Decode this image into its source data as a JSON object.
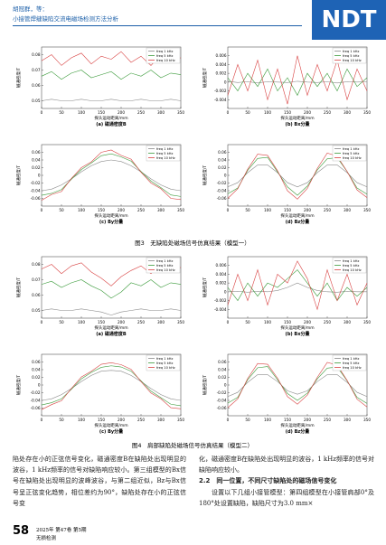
{
  "header": {
    "authors": "胡冠群，等：",
    "title": "小接管焊缝缺陷交流电磁场检测方法分析"
  },
  "logo": "NDT",
  "chart_data": [
    {
      "type": "line",
      "title": "(a) 磁通密度B",
      "x_label": "探头运动距离/mm",
      "y_label": "磁通密度/T",
      "legend": "upper right",
      "xlim": [
        0,
        350
      ],
      "xticks": [
        0,
        50,
        100,
        150,
        200,
        250,
        300,
        350
      ],
      "ylim": [
        0.045,
        0.085
      ],
      "yticks": [
        0.05,
        0.06,
        0.07,
        0.08
      ],
      "x": [
        0,
        25,
        50,
        75,
        100,
        125,
        150,
        175,
        200,
        225,
        250,
        275,
        300,
        325,
        350
      ],
      "series": [
        {
          "name": "freq 1 kHz",
          "color": "#8a8a8a",
          "values": [
            0.05,
            0.051,
            0.05,
            0.05,
            0.051,
            0.05,
            0.05,
            0.051,
            0.05,
            0.05,
            0.051,
            0.05,
            0.05,
            0.051,
            0.05
          ]
        },
        {
          "name": "freq 5 kHz",
          "color": "#3a9a3a",
          "values": [
            0.066,
            0.069,
            0.064,
            0.068,
            0.07,
            0.065,
            0.067,
            0.069,
            0.064,
            0.068,
            0.066,
            0.07,
            0.065,
            0.068,
            0.067
          ]
        },
        {
          "name": "freq 10 kHz",
          "color": "#d84040",
          "values": [
            0.076,
            0.08,
            0.073,
            0.078,
            0.081,
            0.074,
            0.079,
            0.077,
            0.082,
            0.075,
            0.079,
            0.073,
            0.08,
            0.076,
            0.078
          ]
        }
      ]
    },
    {
      "type": "line",
      "title": "(b) Bx分量",
      "x_label": "探头运动距离/mm",
      "y_label": "磁通密度/T",
      "legend": "upper right",
      "xlim": [
        0,
        350
      ],
      "xticks": [
        0,
        50,
        100,
        150,
        200,
        250,
        300,
        350
      ],
      "ylim": [
        -0.006,
        0.008
      ],
      "yticks": [
        -0.004,
        -0.002,
        0,
        0.002,
        0.004,
        0.006
      ],
      "x": [
        0,
        25,
        50,
        75,
        100,
        125,
        150,
        175,
        200,
        225,
        250,
        275,
        300,
        325,
        350
      ],
      "series": [
        {
          "name": "freq 1 kHz",
          "color": "#8a8a8a",
          "values": [
            0.0002,
            -0.0001,
            0.0001,
            -0.0002,
            0.0001,
            0,
            -0.0001,
            0.0002,
            0,
            -0.0001,
            0.0001,
            -0.0002,
            0.0001,
            0,
            0.0001
          ]
        },
        {
          "name": "freq 5 kHz",
          "color": "#3a9a3a",
          "values": [
            0.001,
            -0.002,
            0.002,
            -0.001,
            0.003,
            -0.002,
            0.001,
            -0.003,
            0.002,
            -0.001,
            0.002,
            -0.002,
            0.003,
            -0.001,
            0.001
          ]
        },
        {
          "name": "freq 10 kHz",
          "color": "#d84040",
          "values": [
            -0.003,
            0.004,
            -0.002,
            0.005,
            -0.004,
            0.003,
            -0.005,
            0.006,
            -0.003,
            0.004,
            -0.002,
            0.005,
            -0.004,
            0.003,
            -0.002
          ]
        }
      ]
    },
    {
      "type": "line",
      "title": "(c) By分量",
      "x_label": "探头运动距离/mm",
      "y_label": "磁通密度/T",
      "legend": "upper right",
      "xlim": [
        0,
        350
      ],
      "xticks": [
        0,
        50,
        100,
        150,
        200,
        250,
        300,
        350
      ],
      "ylim": [
        -0.08,
        0.08
      ],
      "yticks": [
        -0.06,
        -0.04,
        -0.02,
        0,
        0.02,
        0.04,
        0.06
      ],
      "x": [
        0,
        25,
        50,
        75,
        100,
        125,
        150,
        175,
        200,
        225,
        250,
        275,
        300,
        325,
        350
      ],
      "series": [
        {
          "name": "freq 1 kHz",
          "color": "#8a8a8a",
          "values": [
            -0.04,
            -0.036,
            -0.025,
            -0.009,
            0.009,
            0.025,
            0.036,
            0.04,
            0.036,
            0.025,
            0.009,
            -0.009,
            -0.025,
            -0.036,
            -0.04
          ]
        },
        {
          "name": "freq 5 kHz",
          "color": "#3a9a3a",
          "values": [
            -0.052,
            -0.047,
            -0.037,
            -0.01,
            0.015,
            0.032,
            0.051,
            0.056,
            0.048,
            0.037,
            0.01,
            -0.015,
            -0.032,
            -0.051,
            -0.055
          ]
        },
        {
          "name": "freq 10 kHz",
          "color": "#d84040",
          "values": [
            -0.065,
            -0.05,
            -0.042,
            -0.008,
            0.02,
            0.035,
            0.06,
            0.066,
            0.052,
            0.042,
            0.008,
            -0.02,
            -0.035,
            -0.06,
            -0.063
          ]
        }
      ]
    },
    {
      "type": "line",
      "title": "(d) Bz分量",
      "x_label": "探头运动距离/mm",
      "y_label": "磁通密度/T",
      "legend": "upper right",
      "xlim": [
        0,
        350
      ],
      "xticks": [
        0,
        50,
        100,
        150,
        200,
        250,
        300,
        350
      ],
      "ylim": [
        -0.08,
        0.08
      ],
      "yticks": [
        -0.06,
        -0.04,
        -0.02,
        0,
        0.02,
        0.04,
        0.06
      ],
      "x": [
        0,
        25,
        50,
        75,
        100,
        125,
        150,
        175,
        200,
        225,
        250,
        275,
        300,
        325,
        350
      ],
      "series": [
        {
          "name": "freq 1 kHz",
          "color": "#8a8a8a",
          "values": [
            -0.03,
            -0.019,
            0.007,
            0.027,
            0.027,
            0.007,
            -0.019,
            -0.03,
            -0.019,
            0.007,
            0.027,
            0.027,
            0.007,
            -0.019,
            -0.03
          ]
        },
        {
          "name": "freq 5 kHz",
          "color": "#3a9a3a",
          "values": [
            -0.048,
            -0.033,
            0.013,
            0.044,
            0.047,
            0.009,
            -0.03,
            -0.052,
            -0.028,
            0.014,
            0.043,
            0.046,
            0.01,
            -0.033,
            -0.049
          ]
        },
        {
          "name": "freq 10 kHz",
          "color": "#d84040",
          "values": [
            -0.06,
            -0.035,
            0.016,
            0.055,
            0.052,
            0.012,
            -0.04,
            -0.062,
            -0.034,
            0.018,
            0.058,
            0.05,
            0.01,
            -0.038,
            -0.058
          ]
        }
      ]
    },
    {
      "type": "line",
      "title": "(a) 磁通密度B",
      "x_label": "探头运动距离/mm",
      "y_label": "磁通密度/T",
      "legend": "upper right",
      "xlim": [
        0,
        350
      ],
      "xticks": [
        0,
        50,
        100,
        150,
        200,
        250,
        300,
        350
      ],
      "ylim": [
        0.045,
        0.085
      ],
      "yticks": [
        0.05,
        0.06,
        0.07,
        0.08
      ],
      "x": [
        0,
        25,
        50,
        75,
        100,
        125,
        150,
        175,
        200,
        225,
        250,
        275,
        300,
        325,
        350
      ],
      "series": [
        {
          "name": "freq 1 kHz",
          "color": "#8a8a8a",
          "values": [
            0.05,
            0.051,
            0.05,
            0.05,
            0.051,
            0.05,
            0.049,
            0.047,
            0.049,
            0.05,
            0.051,
            0.05,
            0.05,
            0.051,
            0.05
          ]
        },
        {
          "name": "freq 5 kHz",
          "color": "#3a9a3a",
          "values": [
            0.067,
            0.069,
            0.065,
            0.068,
            0.07,
            0.066,
            0.063,
            0.058,
            0.062,
            0.068,
            0.066,
            0.07,
            0.065,
            0.068,
            0.067
          ]
        },
        {
          "name": "freq 10 kHz",
          "color": "#d84040",
          "values": [
            0.077,
            0.08,
            0.074,
            0.079,
            0.081,
            0.075,
            0.071,
            0.066,
            0.072,
            0.076,
            0.079,
            0.074,
            0.08,
            0.076,
            0.078
          ]
        }
      ]
    },
    {
      "type": "line",
      "title": "(b) Bx分量",
      "x_label": "探头运动距离/mm",
      "y_label": "磁通密度/T",
      "legend": "upper right",
      "xlim": [
        0,
        350
      ],
      "xticks": [
        0,
        50,
        100,
        150,
        200,
        250,
        300,
        350
      ],
      "ylim": [
        -0.006,
        0.008
      ],
      "yticks": [
        -0.004,
        -0.002,
        0,
        0.002,
        0.004,
        0.006
      ],
      "x": [
        0,
        25,
        50,
        75,
        100,
        125,
        150,
        175,
        200,
        225,
        250,
        275,
        300,
        325,
        350
      ],
      "series": [
        {
          "name": "freq 1 kHz",
          "color": "#8a8a8a",
          "values": [
            0,
            0.0001,
            -0.0001,
            0.0001,
            0,
            0.0003,
            0.001,
            0.002,
            0.001,
            0.0003,
            0,
            -0.0001,
            0.0001,
            0,
            0
          ]
        },
        {
          "name": "freq 5 kHz",
          "color": "#3a9a3a",
          "values": [
            0.001,
            -0.002,
            0.002,
            -0.001,
            0.002,
            0.001,
            0.003,
            0.005,
            0.002,
            -0.001,
            0.002,
            -0.002,
            0.001,
            -0.001,
            0.001
          ]
        },
        {
          "name": "freq 10 kHz",
          "color": "#d84040",
          "values": [
            -0.003,
            0.004,
            -0.002,
            0.005,
            -0.003,
            0.004,
            0.002,
            0.007,
            0.003,
            -0.004,
            0.005,
            -0.002,
            0.004,
            -0.003,
            0.002
          ]
        }
      ]
    },
    {
      "type": "line",
      "title": "(c) By分量",
      "x_label": "探头运动距离/mm",
      "y_label": "磁通密度/T",
      "legend": "upper right",
      "xlim": [
        0,
        350
      ],
      "xticks": [
        0,
        50,
        100,
        150,
        200,
        250,
        300,
        350
      ],
      "ylim": [
        -0.08,
        0.08
      ],
      "yticks": [
        -0.06,
        -0.04,
        -0.02,
        0,
        0.02,
        0.04,
        0.06
      ],
      "x": [
        0,
        25,
        50,
        75,
        100,
        125,
        150,
        175,
        200,
        225,
        250,
        275,
        300,
        325,
        350
      ],
      "series": [
        {
          "name": "freq 1 kHz",
          "color": "#8a8a8a",
          "values": [
            -0.04,
            -0.036,
            -0.025,
            -0.009,
            0.009,
            0.025,
            0.036,
            0.038,
            0.036,
            0.025,
            0.009,
            -0.009,
            -0.025,
            -0.036,
            -0.04
          ]
        },
        {
          "name": "freq 5 kHz",
          "color": "#3a9a3a",
          "values": [
            -0.052,
            -0.046,
            -0.036,
            -0.011,
            0.016,
            0.033,
            0.046,
            0.05,
            0.047,
            0.036,
            0.011,
            -0.016,
            -0.033,
            -0.05,
            -0.054
          ]
        },
        {
          "name": "freq 10 kHz",
          "color": "#d84040",
          "values": [
            -0.064,
            -0.051,
            -0.041,
            -0.009,
            0.021,
            0.036,
            0.054,
            0.058,
            0.053,
            0.041,
            0.009,
            -0.021,
            -0.036,
            -0.059,
            -0.062
          ]
        }
      ]
    },
    {
      "type": "line",
      "title": "(d) Bz分量",
      "x_label": "探头运动距离/mm",
      "y_label": "磁通密度/T",
      "legend": "upper right",
      "xlim": [
        0,
        350
      ],
      "xticks": [
        0,
        50,
        100,
        150,
        200,
        250,
        300,
        350
      ],
      "ylim": [
        -0.08,
        0.08
      ],
      "yticks": [
        -0.06,
        -0.04,
        -0.02,
        0,
        0.02,
        0.04,
        0.06
      ],
      "x": [
        0,
        25,
        50,
        75,
        100,
        125,
        150,
        175,
        200,
        225,
        250,
        275,
        300,
        325,
        350
      ],
      "series": [
        {
          "name": "freq 1 kHz",
          "color": "#8a8a8a",
          "values": [
            -0.03,
            -0.019,
            0.007,
            0.027,
            0.027,
            0.009,
            -0.015,
            -0.024,
            -0.015,
            0.009,
            0.027,
            0.027,
            0.007,
            -0.019,
            -0.03
          ]
        },
        {
          "name": "freq 5 kHz",
          "color": "#3a9a3a",
          "values": [
            -0.047,
            -0.032,
            0.014,
            0.045,
            0.048,
            0.014,
            -0.022,
            -0.04,
            -0.021,
            0.016,
            0.044,
            0.047,
            0.011,
            -0.032,
            -0.048
          ]
        },
        {
          "name": "freq 10 kHz",
          "color": "#d84040",
          "values": [
            -0.059,
            -0.036,
            0.017,
            0.056,
            0.054,
            0.018,
            -0.03,
            -0.05,
            -0.026,
            0.02,
            0.059,
            0.052,
            0.012,
            -0.037,
            -0.057
          ]
        }
      ]
    }
  ],
  "captions": [
    "图3　无缺陷处磁场信号仿真结果（模型一）",
    "图4　肩部缺陷处磁场信号仿真结果（模型二）"
  ],
  "body": {
    "left": "陷处存在小的正弦信号变化，磁通密度B在缺陷处出现明显的波谷，1 kHz频率的信号对缺陷响应较小。第三组模型的Bx信号在缺陷处出现明显的波峰波谷，与第二组近似，Bz与Bx信号呈正弦变化趋势，相位差约为90°，缺陷处存在小的正弦信号变",
    "right": "化，磁通密度B在缺陷处出现明显的波谷，1 kHz频率的信号对缺陷响应较小。",
    "heading": "2.2　同一位置，不同尺寸缺陷处的磁场信号变化",
    "right2": "设置以下几组小接管模型：第四组模型在小接管肩部0°及180°处设置缺陷，缺陷尺寸为3.0 mm×"
  },
  "footer": {
    "page": "58",
    "issue": "2025年 第47卷 第5期",
    "journal": "无损检测"
  }
}
